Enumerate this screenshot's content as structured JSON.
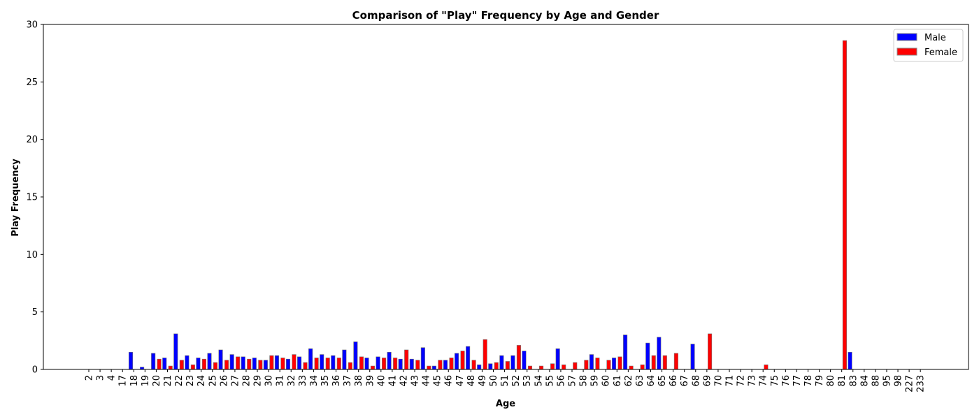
{
  "chart_data": {
    "type": "bar",
    "title": "Comparison of \"Play\" Frequency by Age and Gender",
    "xlabel": "Age",
    "ylabel": "Play Frequency",
    "ylim": [
      0,
      30
    ],
    "yticks": [
      0,
      5,
      10,
      15,
      20,
      25,
      30
    ],
    "legend_position": "top-right",
    "grid": false,
    "categories": [
      "2",
      "3",
      "4",
      "17",
      "18",
      "19",
      "20",
      "21",
      "22",
      "23",
      "24",
      "25",
      "26",
      "27",
      "28",
      "29",
      "30",
      "31",
      "32",
      "33",
      "34",
      "35",
      "36",
      "37",
      "38",
      "39",
      "40",
      "41",
      "42",
      "43",
      "44",
      "45",
      "46",
      "47",
      "48",
      "49",
      "50",
      "51",
      "52",
      "53",
      "54",
      "55",
      "56",
      "57",
      "58",
      "59",
      "60",
      "61",
      "62",
      "63",
      "64",
      "65",
      "66",
      "67",
      "68",
      "69",
      "70",
      "71",
      "72",
      "73",
      "74",
      "75",
      "76",
      "77",
      "78",
      "79",
      "80",
      "81",
      "83",
      "84",
      "88",
      "95",
      "98",
      "227",
      "233"
    ],
    "series": [
      {
        "name": "Male",
        "color": "#0000ff",
        "values": [
          0,
          0,
          0,
          0,
          1.5,
          0.2,
          1.4,
          1.0,
          3.1,
          1.2,
          1.0,
          1.4,
          1.7,
          1.3,
          1.1,
          1.0,
          0.8,
          1.2,
          0.9,
          1.1,
          1.8,
          1.3,
          1.2,
          1.7,
          2.4,
          1.0,
          1.1,
          1.5,
          0.9,
          0.9,
          1.9,
          0.3,
          0.8,
          1.4,
          2.0,
          0.4,
          0.5,
          1.2,
          1.2,
          1.6,
          0,
          0,
          1.8,
          0,
          0,
          1.3,
          0,
          1.0,
          3.0,
          0,
          2.3,
          2.8,
          0,
          0,
          2.2,
          0,
          0,
          0,
          0,
          0,
          0,
          0,
          0,
          0,
          0,
          0,
          0,
          0,
          1.5,
          0,
          0,
          0,
          0,
          0,
          0
        ]
      },
      {
        "name": "Female",
        "color": "#ff0000",
        "values": [
          0,
          0,
          0,
          0,
          0,
          0,
          0.9,
          0.3,
          0.8,
          0.4,
          0.9,
          0.6,
          0.8,
          1.1,
          0.9,
          0.8,
          1.2,
          1.0,
          1.3,
          0.6,
          1.0,
          1.0,
          1.0,
          0.6,
          1.1,
          0.3,
          1.0,
          1.0,
          1.7,
          0.8,
          0.3,
          0.8,
          1.0,
          1.6,
          0.8,
          2.6,
          0.6,
          0.7,
          2.1,
          0.3,
          0.3,
          0.5,
          0.4,
          0.6,
          0.8,
          1.0,
          0.8,
          1.1,
          0.3,
          0.4,
          1.2,
          1.2,
          1.4,
          0,
          0,
          3.1,
          0,
          0,
          0,
          0,
          0.4,
          0,
          0,
          0,
          0,
          0,
          0,
          28.6,
          0,
          0,
          0,
          0,
          0,
          0,
          0
        ]
      }
    ]
  }
}
